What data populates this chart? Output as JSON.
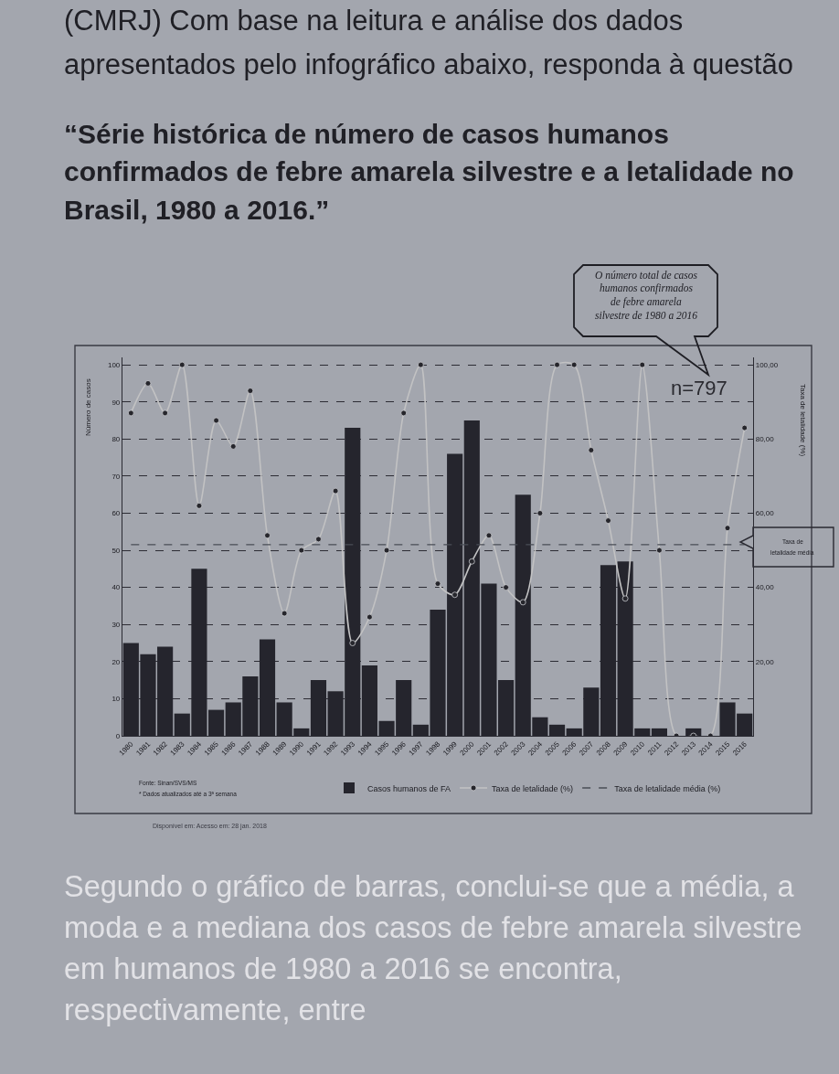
{
  "chart_data": {
    "type": "bar",
    "title": "“Série histórica de número de casos humanos\nconfirmados de febre amarela silvestre e a letalidade no\nBrasil, 1980 a 2016.”",
    "ylabel": "Número de casos",
    "y2label": "Taxa de letalidade (%)",
    "categories": [
      "1980",
      "1981",
      "1982",
      "1983",
      "1984",
      "1985",
      "1986",
      "1987",
      "1988",
      "1989",
      "1990",
      "1991",
      "1992",
      "1993",
      "1994",
      "1995",
      "1996",
      "1997",
      "1998",
      "1999",
      "2000",
      "2001",
      "2002",
      "2003",
      "2004",
      "2005",
      "2006",
      "2007",
      "2008",
      "2009",
      "2010",
      "2011",
      "2012",
      "2013",
      "2014",
      "2015",
      "2016"
    ],
    "series": [
      {
        "name": "Casos humanos de FA",
        "color": "#25252d",
        "values": [
          25,
          22,
          24,
          6,
          45,
          7,
          9,
          16,
          26,
          9,
          2,
          15,
          12,
          83,
          19,
          4,
          15,
          3,
          34,
          76,
          85,
          41,
          15,
          65,
          5,
          3,
          2,
          13,
          46,
          47,
          2,
          2,
          0,
          2,
          0,
          9,
          6
        ]
      },
      {
        "name": "Taxa de letalidade (%)",
        "type": "line",
        "axis": "y2",
        "color": "#26262c",
        "marker": "circle",
        "values": [
          87,
          95,
          87,
          100,
          62,
          85,
          78,
          93,
          54,
          33,
          50,
          53,
          66,
          25,
          32,
          50,
          87,
          100,
          41,
          38,
          47,
          54,
          40,
          36,
          60,
          100,
          100,
          77,
          58,
          37,
          100,
          50,
          0,
          0,
          0,
          56,
          83
        ]
      },
      {
        "name": "Taxa de letalidade média (%)",
        "type": "line",
        "axis": "y2",
        "color": "#4a4d56",
        "marker": "none",
        "line_style": "dashed",
        "values": [
          51.5,
          51.5,
          51.5,
          51.5,
          51.5,
          51.5,
          51.5,
          51.5,
          51.5,
          51.5,
          51.5,
          51.5,
          51.5,
          51.5,
          51.5,
          51.5,
          51.5,
          51.5,
          51.5,
          51.5,
          51.5,
          51.5,
          51.5,
          51.5,
          51.5,
          51.5,
          51.5,
          51.5,
          51.5,
          51.5,
          51.5,
          51.5,
          51.5,
          51.5,
          51.5,
          51.5,
          51.5
        ]
      }
    ],
    "ylim": [
      0,
      102
    ],
    "yticks": [
      0,
      10,
      20,
      30,
      40,
      50,
      60,
      70,
      80,
      90,
      100
    ],
    "y2lim": [
      0,
      102
    ],
    "y2ticks": [
      {
        "value": 20,
        "label": "20,00"
      },
      {
        "value": 40,
        "label": "40,00"
      },
      {
        "value": 60,
        "label": "60,00"
      },
      {
        "value": 80,
        "label": "80,00"
      },
      {
        "value": 100,
        "label": "100,00"
      }
    ],
    "grid": "y",
    "legend": "bottom",
    "annotations": [
      "(CMRJ) Com base na leitura e análise dos dados\napresentados pelo infográfico abaixo, responda à questão",
      "O número total de casos\nhumanos confirmados\nde febre amarela\nsilvestre de 1980 a 2016",
      "n=797",
      "Fonte: Sinan/SVS/MS",
      "* Dados atualizados até a 3ª semana",
      "Disponível em: Acesso em: 28 jan. 2018",
      "Segundo o gráfico de barras, conclui-se que a média, a\nmoda e a mediana dos casos de febre amarela silvestre\nem humanos de 1980 a 2016 se encontra,\nrespectivamente, entre",
      "Taxa de\nletalidade média"
    ]
  }
}
